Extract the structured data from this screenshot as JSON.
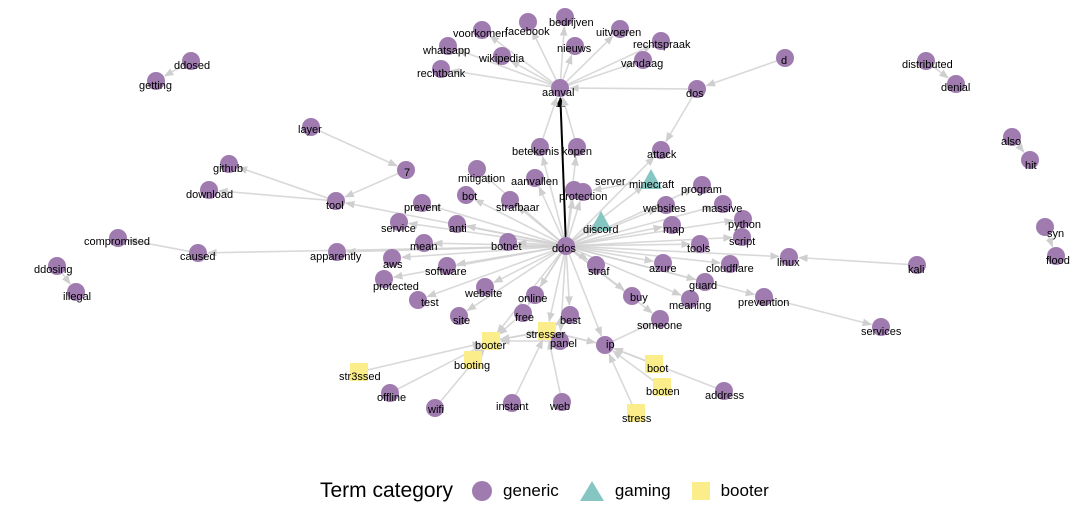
{
  "colors": {
    "generic": "#9f7bb0",
    "gaming": "#86c6c2",
    "booter": "#fbee8a",
    "edge": "#d0d0d0",
    "edge_strong": "#000000"
  },
  "legend": {
    "title": "Term category",
    "items": [
      {
        "label": "generic",
        "category": "generic",
        "shape": "circle"
      },
      {
        "label": "gaming",
        "category": "gaming",
        "shape": "triangle"
      },
      {
        "label": "booter",
        "category": "booter",
        "shape": "square"
      }
    ]
  },
  "graph": {
    "nodes": [
      {
        "id": "ddos",
        "label": "ddos",
        "category": "generic"
      },
      {
        "id": "aanval",
        "label": "aanval",
        "category": "generic"
      },
      {
        "id": "voorkomen",
        "label": "voorkomen",
        "category": "generic"
      },
      {
        "id": "facebook",
        "label": "facebook",
        "category": "generic"
      },
      {
        "id": "bedrijven",
        "label": "bedrijven",
        "category": "generic"
      },
      {
        "id": "uitvoeren",
        "label": "uitvoeren",
        "category": "generic"
      },
      {
        "id": "whatsapp",
        "label": "whatsapp",
        "category": "generic"
      },
      {
        "id": "wikipedia",
        "label": "wikipedia",
        "category": "generic"
      },
      {
        "id": "nieuws",
        "label": "nieuws",
        "category": "generic"
      },
      {
        "id": "rechtspraak",
        "label": "rechtspraak",
        "category": "generic"
      },
      {
        "id": "rechtbank",
        "label": "rechtbank",
        "category": "generic"
      },
      {
        "id": "vandaag",
        "label": "vandaag",
        "category": "generic"
      },
      {
        "id": "d",
        "label": "d",
        "category": "generic"
      },
      {
        "id": "dos",
        "label": "dos",
        "category": "generic"
      },
      {
        "id": "ddosed",
        "label": "ddosed",
        "category": "generic"
      },
      {
        "id": "getting",
        "label": "getting",
        "category": "generic"
      },
      {
        "id": "distributed",
        "label": "distributed",
        "category": "generic"
      },
      {
        "id": "denial",
        "label": "denial",
        "category": "generic"
      },
      {
        "id": "layer",
        "label": "layer",
        "category": "generic"
      },
      {
        "id": "7",
        "label": "7",
        "category": "generic"
      },
      {
        "id": "github",
        "label": "github",
        "category": "generic"
      },
      {
        "id": "download",
        "label": "download",
        "category": "generic"
      },
      {
        "id": "tool",
        "label": "tool",
        "category": "generic"
      },
      {
        "id": "mitigation",
        "label": "mitigation",
        "category": "generic"
      },
      {
        "id": "bot",
        "label": "bot",
        "category": "generic"
      },
      {
        "id": "prevent",
        "label": "prevent",
        "category": "generic"
      },
      {
        "id": "betekenis",
        "label": "betekenis",
        "category": "generic"
      },
      {
        "id": "kopen",
        "label": "kopen",
        "category": "generic"
      },
      {
        "id": "attack",
        "label": "attack",
        "category": "generic"
      },
      {
        "id": "aanvallen",
        "label": "aanvallen",
        "category": "generic"
      },
      {
        "id": "strafbaar",
        "label": "strafbaar",
        "category": "generic"
      },
      {
        "id": "protection",
        "label": "protection",
        "category": "generic"
      },
      {
        "id": "server",
        "label": "server",
        "category": "generic"
      },
      {
        "id": "minecraft",
        "label": "minecraft",
        "category": "gaming"
      },
      {
        "id": "program",
        "label": "program",
        "category": "generic"
      },
      {
        "id": "websites",
        "label": "websites",
        "category": "generic"
      },
      {
        "id": "massive",
        "label": "massive",
        "category": "generic"
      },
      {
        "id": "also",
        "label": "also",
        "category": "generic"
      },
      {
        "id": "hit",
        "label": "hit",
        "category": "generic"
      },
      {
        "id": "compromised",
        "label": "compromised",
        "category": "generic"
      },
      {
        "id": "caused",
        "label": "caused",
        "category": "generic"
      },
      {
        "id": "service",
        "label": "service",
        "category": "generic"
      },
      {
        "id": "anti",
        "label": "anti",
        "category": "generic"
      },
      {
        "id": "discord",
        "label": "discord",
        "category": "gaming"
      },
      {
        "id": "python",
        "label": "python",
        "category": "generic"
      },
      {
        "id": "map",
        "label": "map",
        "category": "generic"
      },
      {
        "id": "script",
        "label": "script",
        "category": "generic"
      },
      {
        "id": "syn",
        "label": "syn",
        "category": "generic"
      },
      {
        "id": "flood",
        "label": "flood",
        "category": "generic"
      },
      {
        "id": "mean",
        "label": "mean",
        "category": "generic"
      },
      {
        "id": "botnet",
        "label": "botnet",
        "category": "generic"
      },
      {
        "id": "tools",
        "label": "tools",
        "category": "generic"
      },
      {
        "id": "apparently",
        "label": "apparently",
        "category": "generic"
      },
      {
        "id": "ddosing",
        "label": "ddosing",
        "category": "generic"
      },
      {
        "id": "illegal",
        "label": "illegal",
        "category": "generic"
      },
      {
        "id": "aws",
        "label": "aws",
        "category": "generic"
      },
      {
        "id": "linux",
        "label": "linux",
        "category": "generic"
      },
      {
        "id": "kali",
        "label": "kali",
        "category": "generic"
      },
      {
        "id": "software",
        "label": "software",
        "category": "generic"
      },
      {
        "id": "straf",
        "label": "straf",
        "category": "generic"
      },
      {
        "id": "azure",
        "label": "azure",
        "category": "generic"
      },
      {
        "id": "cloudflare",
        "label": "cloudflare",
        "category": "generic"
      },
      {
        "id": "protected",
        "label": "protected",
        "category": "generic"
      },
      {
        "id": "guard",
        "label": "guard",
        "category": "generic"
      },
      {
        "id": "website",
        "label": "website",
        "category": "generic"
      },
      {
        "id": "online",
        "label": "online",
        "category": "generic"
      },
      {
        "id": "test",
        "label": "test",
        "category": "generic"
      },
      {
        "id": "buy",
        "label": "buy",
        "category": "generic"
      },
      {
        "id": "meaning",
        "label": "meaning",
        "category": "generic"
      },
      {
        "id": "prevention",
        "label": "prevention",
        "category": "generic"
      },
      {
        "id": "services",
        "label": "services",
        "category": "generic"
      },
      {
        "id": "site",
        "label": "site",
        "category": "generic"
      },
      {
        "id": "free",
        "label": "free",
        "category": "generic"
      },
      {
        "id": "best",
        "label": "best",
        "category": "generic"
      },
      {
        "id": "someone",
        "label": "someone",
        "category": "generic"
      },
      {
        "id": "stresser",
        "label": "stresser",
        "category": "booter"
      },
      {
        "id": "panel",
        "label": "panel",
        "category": "generic"
      },
      {
        "id": "booter",
        "label": "booter",
        "category": "booter"
      },
      {
        "id": "ip",
        "label": "ip",
        "category": "generic"
      },
      {
        "id": "booting",
        "label": "booting",
        "category": "booter"
      },
      {
        "id": "boot",
        "label": "boot",
        "category": "booter"
      },
      {
        "id": "str3ssed",
        "label": "str3ssed",
        "category": "booter"
      },
      {
        "id": "offline",
        "label": "offline",
        "category": "generic"
      },
      {
        "id": "booten",
        "label": "booten",
        "category": "booter"
      },
      {
        "id": "address",
        "label": "address",
        "category": "generic"
      },
      {
        "id": "wifi",
        "label": "wifi",
        "category": "generic"
      },
      {
        "id": "instant",
        "label": "instant",
        "category": "generic"
      },
      {
        "id": "web",
        "label": "web",
        "category": "generic"
      },
      {
        "id": "stress",
        "label": "stress",
        "category": "booter"
      }
    ],
    "edges": [
      {
        "from": "ddos",
        "to": "aanval",
        "strong": true
      },
      {
        "from": "aanval",
        "to": "voorkomen"
      },
      {
        "from": "aanval",
        "to": "facebook"
      },
      {
        "from": "aanval",
        "to": "bedrijven"
      },
      {
        "from": "aanval",
        "to": "uitvoeren"
      },
      {
        "from": "aanval",
        "to": "whatsapp"
      },
      {
        "from": "aanval",
        "to": "wikipedia"
      },
      {
        "from": "aanval",
        "to": "nieuws"
      },
      {
        "from": "aanval",
        "to": "rechtspraak"
      },
      {
        "from": "aanval",
        "to": "rechtbank"
      },
      {
        "from": "aanval",
        "to": "vandaag"
      },
      {
        "from": "dos",
        "to": "aanval"
      },
      {
        "from": "d",
        "to": "dos"
      },
      {
        "from": "dos",
        "to": "attack"
      },
      {
        "from": "ddosed",
        "to": "getting"
      },
      {
        "from": "distributed",
        "to": "denial"
      },
      {
        "from": "layer",
        "to": "7"
      },
      {
        "from": "7",
        "to": "tool"
      },
      {
        "from": "tool",
        "to": "github"
      },
      {
        "from": "tool",
        "to": "download"
      },
      {
        "from": "ddos",
        "to": "tool"
      },
      {
        "from": "ddos",
        "to": "mitigation"
      },
      {
        "from": "ddos",
        "to": "bot"
      },
      {
        "from": "ddos",
        "to": "prevent"
      },
      {
        "from": "ddos",
        "to": "betekenis"
      },
      {
        "from": "ddos",
        "to": "kopen"
      },
      {
        "from": "betekenis",
        "to": "aanval"
      },
      {
        "from": "kopen",
        "to": "aanval"
      },
      {
        "from": "ddos",
        "to": "attack"
      },
      {
        "from": "ddos",
        "to": "aanvallen"
      },
      {
        "from": "ddos",
        "to": "strafbaar"
      },
      {
        "from": "ddos",
        "to": "protection"
      },
      {
        "from": "ddos",
        "to": "server"
      },
      {
        "from": "minecraft",
        "to": "server"
      },
      {
        "from": "ddos",
        "to": "minecraft"
      },
      {
        "from": "ddos",
        "to": "program"
      },
      {
        "from": "ddos",
        "to": "websites"
      },
      {
        "from": "ddos",
        "to": "massive"
      },
      {
        "from": "also",
        "to": "hit"
      },
      {
        "from": "caused",
        "to": "compromised"
      },
      {
        "from": "ddos",
        "to": "caused"
      },
      {
        "from": "ddos",
        "to": "service"
      },
      {
        "from": "ddos",
        "to": "anti"
      },
      {
        "from": "ddos",
        "to": "discord"
      },
      {
        "from": "ddos",
        "to": "python"
      },
      {
        "from": "ddos",
        "to": "map"
      },
      {
        "from": "ddos",
        "to": "script"
      },
      {
        "from": "syn",
        "to": "flood"
      },
      {
        "from": "ddos",
        "to": "mean"
      },
      {
        "from": "ddos",
        "to": "botnet"
      },
      {
        "from": "ddos",
        "to": "tools"
      },
      {
        "from": "ddos",
        "to": "apparently"
      },
      {
        "from": "ddosing",
        "to": "illegal"
      },
      {
        "from": "ddos",
        "to": "aws"
      },
      {
        "from": "kali",
        "to": "linux"
      },
      {
        "from": "ddos",
        "to": "linux"
      },
      {
        "from": "ddos",
        "to": "software"
      },
      {
        "from": "ddos",
        "to": "straf"
      },
      {
        "from": "ddos",
        "to": "azure"
      },
      {
        "from": "ddos",
        "to": "cloudflare"
      },
      {
        "from": "ddos",
        "to": "protected"
      },
      {
        "from": "ddos",
        "to": "guard"
      },
      {
        "from": "ddos",
        "to": "website"
      },
      {
        "from": "ddos",
        "to": "online"
      },
      {
        "from": "ddos",
        "to": "test"
      },
      {
        "from": "ddos",
        "to": "buy"
      },
      {
        "from": "ddos",
        "to": "meaning"
      },
      {
        "from": "ddos",
        "to": "prevention"
      },
      {
        "from": "prevention",
        "to": "services"
      },
      {
        "from": "ddos",
        "to": "site"
      },
      {
        "from": "ddos",
        "to": "free"
      },
      {
        "from": "ddos",
        "to": "best"
      },
      {
        "from": "ddos",
        "to": "someone"
      },
      {
        "from": "ddos",
        "to": "stresser"
      },
      {
        "from": "ddos",
        "to": "panel"
      },
      {
        "from": "ddos",
        "to": "booter"
      },
      {
        "from": "ddos",
        "to": "ip"
      },
      {
        "from": "stresser",
        "to": "booter"
      },
      {
        "from": "booter",
        "to": "stresser"
      },
      {
        "from": "panel",
        "to": "booter"
      },
      {
        "from": "stresser",
        "to": "ip"
      },
      {
        "from": "ip",
        "to": "stresser"
      },
      {
        "from": "booting",
        "to": "booter"
      },
      {
        "from": "boot",
        "to": "ip"
      },
      {
        "from": "str3ssed",
        "to": "booter"
      },
      {
        "from": "offline",
        "to": "booter"
      },
      {
        "from": "booten",
        "to": "ip"
      },
      {
        "from": "address",
        "to": "ip"
      },
      {
        "from": "wifi",
        "to": "booter"
      },
      {
        "from": "instant",
        "to": "stresser"
      },
      {
        "from": "web",
        "to": "stresser"
      },
      {
        "from": "stress",
        "to": "ip"
      },
      {
        "from": "free",
        "to": "booter"
      },
      {
        "from": "best",
        "to": "stresser"
      },
      {
        "from": "ip",
        "to": "someone"
      }
    ]
  }
}
